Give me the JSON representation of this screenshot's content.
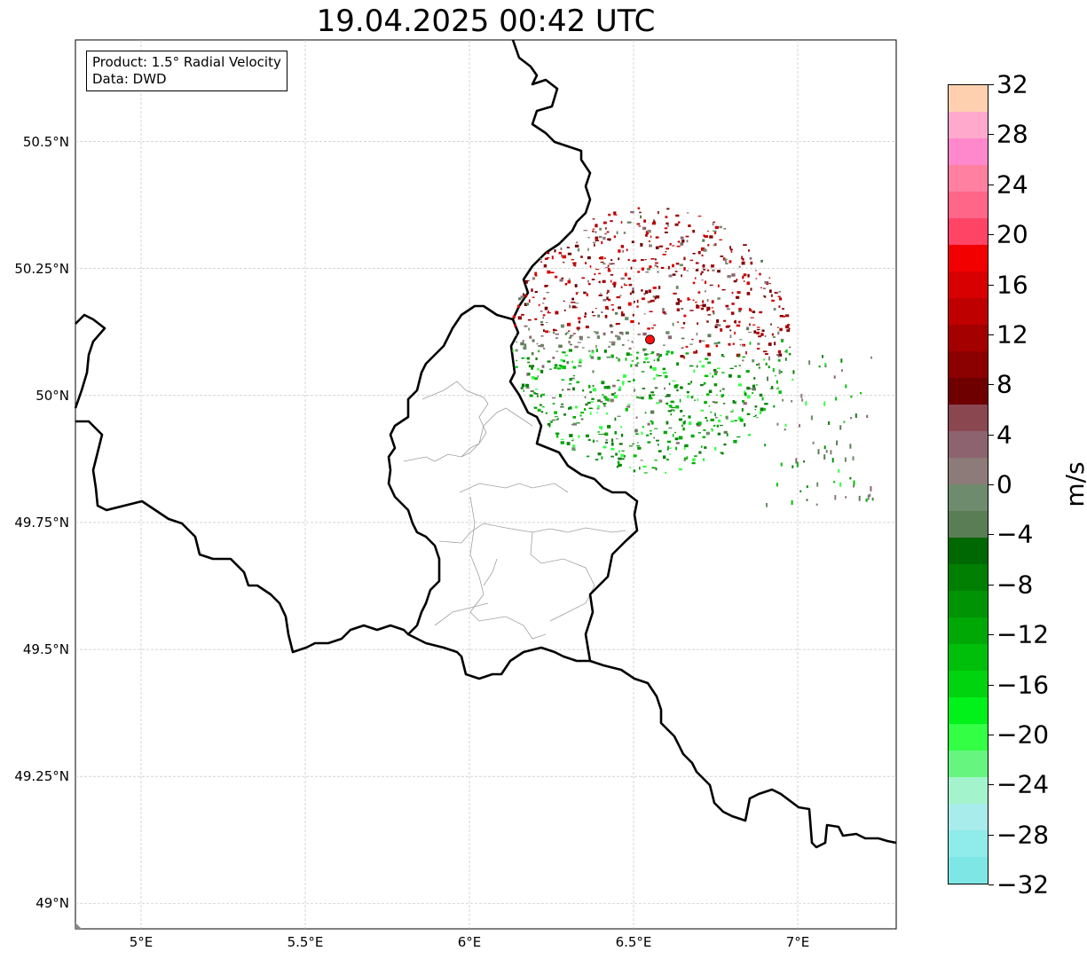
{
  "title": "19.04.2025 00:42 UTC",
  "info": {
    "product": "Product: 1.5° Radial Velocity",
    "data": "Data: DWD"
  },
  "map": {
    "lon_range": [
      4.8,
      7.3
    ],
    "lat_range": [
      48.95,
      50.7
    ],
    "lat_ticks": [
      {
        "value": 50.5,
        "label": "50.5°N"
      },
      {
        "value": 50.25,
        "label": "50.25°N"
      },
      {
        "value": 50.0,
        "label": "50°N"
      },
      {
        "value": 49.75,
        "label": "49.75°N"
      },
      {
        "value": 49.5,
        "label": "49.5°N"
      },
      {
        "value": 49.25,
        "label": "49.25°N"
      },
      {
        "value": 49.0,
        "label": "49°N"
      }
    ],
    "lon_ticks": [
      {
        "value": 5.0,
        "label": "5°E"
      },
      {
        "value": 5.5,
        "label": "5.5°E"
      },
      {
        "value": 6.0,
        "label": "6°E"
      },
      {
        "value": 6.5,
        "label": "6.5°E"
      },
      {
        "value": 7.0,
        "label": "7°E"
      }
    ],
    "gridlines": true,
    "radar_site": {
      "lon": 6.55,
      "lat": 50.11,
      "color": "#ff1010"
    }
  },
  "colorbar": {
    "unit": "m/s",
    "min": -32,
    "max": 32,
    "ticks": [
      "32",
      "28",
      "24",
      "20",
      "16",
      "12",
      "8",
      "4",
      "0",
      "−4",
      "−8",
      "−12",
      "−16",
      "−20",
      "−24",
      "−28",
      "−32"
    ],
    "colors_bottom_to_top": [
      "#7fe6e6",
      "#90ebeb",
      "#a8ecec",
      "#a3f3cc",
      "#66f57f",
      "#33ff44",
      "#00f21a",
      "#00d40e",
      "#00bf0a",
      "#00a806",
      "#009304",
      "#007f02",
      "#006802",
      "#5a7d55",
      "#6f8b6d",
      "#8c7b78",
      "#8c6470",
      "#8b4750",
      "#6e0000",
      "#8b0000",
      "#a40000",
      "#bf0000",
      "#d80000",
      "#f20000",
      "#ff4466",
      "#ff6688",
      "#ff80a0",
      "#ff88cc",
      "#ffaacc",
      "#ffd0b0"
    ]
  }
}
